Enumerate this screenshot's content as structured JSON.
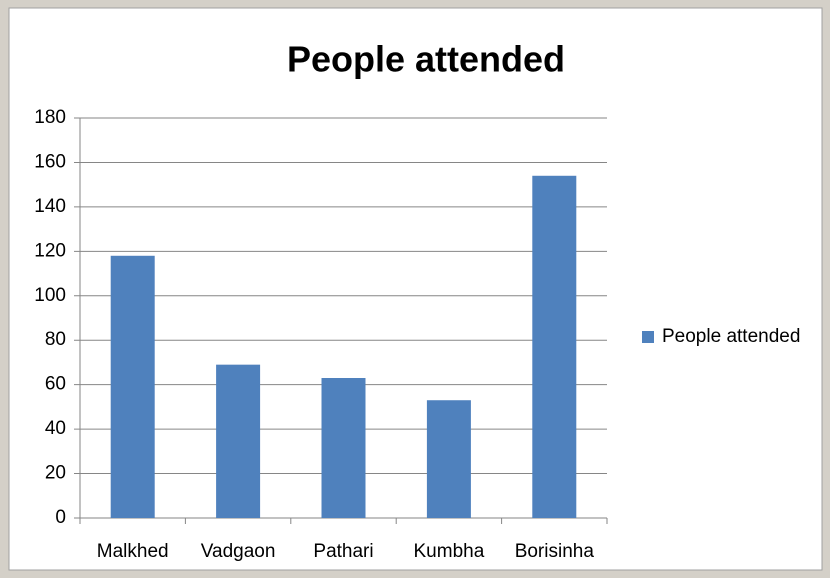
{
  "chart_data": {
    "type": "bar",
    "title": "People attended",
    "categories": [
      "Malkhed",
      "Vadgaon",
      "Pathari",
      "Kumbha",
      "Borisinha"
    ],
    "series": [
      {
        "name": "People attended",
        "color": "#4f81bd",
        "values": [
          118,
          69,
          63,
          53,
          154
        ]
      }
    ],
    "ylim": [
      0,
      180
    ],
    "yticks": [
      0,
      20,
      40,
      60,
      80,
      100,
      120,
      140,
      160,
      180
    ],
    "grid": true,
    "legend": "right"
  }
}
